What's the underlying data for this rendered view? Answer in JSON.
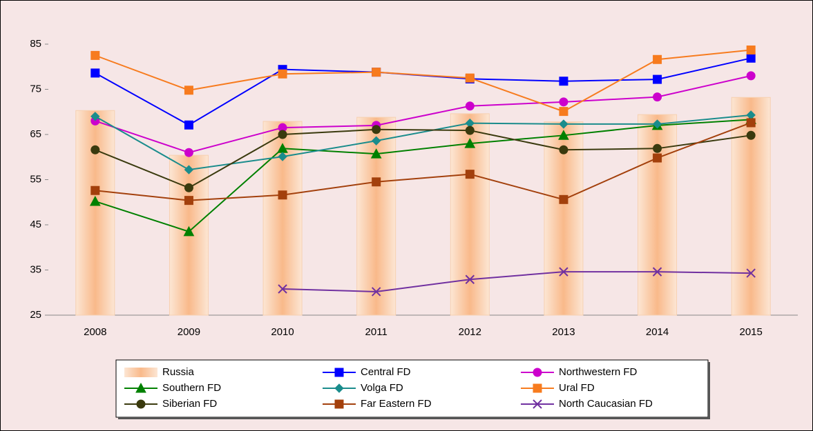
{
  "chart_data": {
    "type": "combo",
    "categories": [
      "2008",
      "2009",
      "2010",
      "2011",
      "2012",
      "2013",
      "2014",
      "2015"
    ],
    "ylim": [
      25,
      90
    ],
    "yticks": [
      25,
      35,
      45,
      55,
      65,
      75,
      85
    ],
    "series": [
      {
        "name": "Russia",
        "type": "bar",
        "color": "#f9b98a",
        "values": [
          70.3,
          60.4,
          67.9,
          68.8,
          69.6,
          67.8,
          69.4,
          73.2
        ]
      },
      {
        "name": "Central FD",
        "type": "line",
        "marker": "square",
        "color": "#0000ff",
        "values": [
          78.6,
          67.1,
          79.4,
          78.8,
          77.3,
          76.8,
          77.2,
          81.9
        ]
      },
      {
        "name": "Northwestern FD",
        "type": "line",
        "marker": "circle",
        "color": "#cc00cc",
        "values": [
          68,
          61,
          66.5,
          67,
          71.3,
          72.2,
          73.3,
          78
        ]
      },
      {
        "name": "Southern FD",
        "type": "line",
        "marker": "triangle",
        "color": "#008000",
        "values": [
          50.2,
          43.5,
          61.9,
          60.7,
          63,
          64.8,
          67,
          68.3
        ]
      },
      {
        "name": "Volga FD",
        "type": "line",
        "marker": "diamond",
        "color": "#1a8c8c",
        "values": [
          69,
          57.2,
          60.1,
          63.6,
          67.5,
          67.3,
          67.3,
          69.3
        ]
      },
      {
        "name": "Ural FD",
        "type": "line",
        "marker": "square",
        "color": "#f77b1e",
        "values": [
          82.5,
          74.8,
          78.4,
          78.8,
          77.5,
          70.1,
          81.6,
          83.7
        ]
      },
      {
        "name": "Siberian FD",
        "type": "line",
        "marker": "circle",
        "color": "#3a3a0e",
        "values": [
          61.6,
          53.2,
          65,
          66.1,
          65.9,
          61.6,
          61.9,
          64.8
        ]
      },
      {
        "name": "Far Eastern FD",
        "type": "line",
        "marker": "square",
        "color": "#a3400c",
        "values": [
          52.6,
          50.4,
          51.6,
          54.5,
          56.2,
          50.6,
          59.8,
          67.6
        ]
      },
      {
        "name": "North Caucasian FD",
        "type": "line",
        "marker": "x",
        "color": "#7030a0",
        "values": [
          null,
          null,
          30.8,
          30.2,
          32.9,
          34.6,
          34.6,
          34.3
        ]
      }
    ]
  }
}
